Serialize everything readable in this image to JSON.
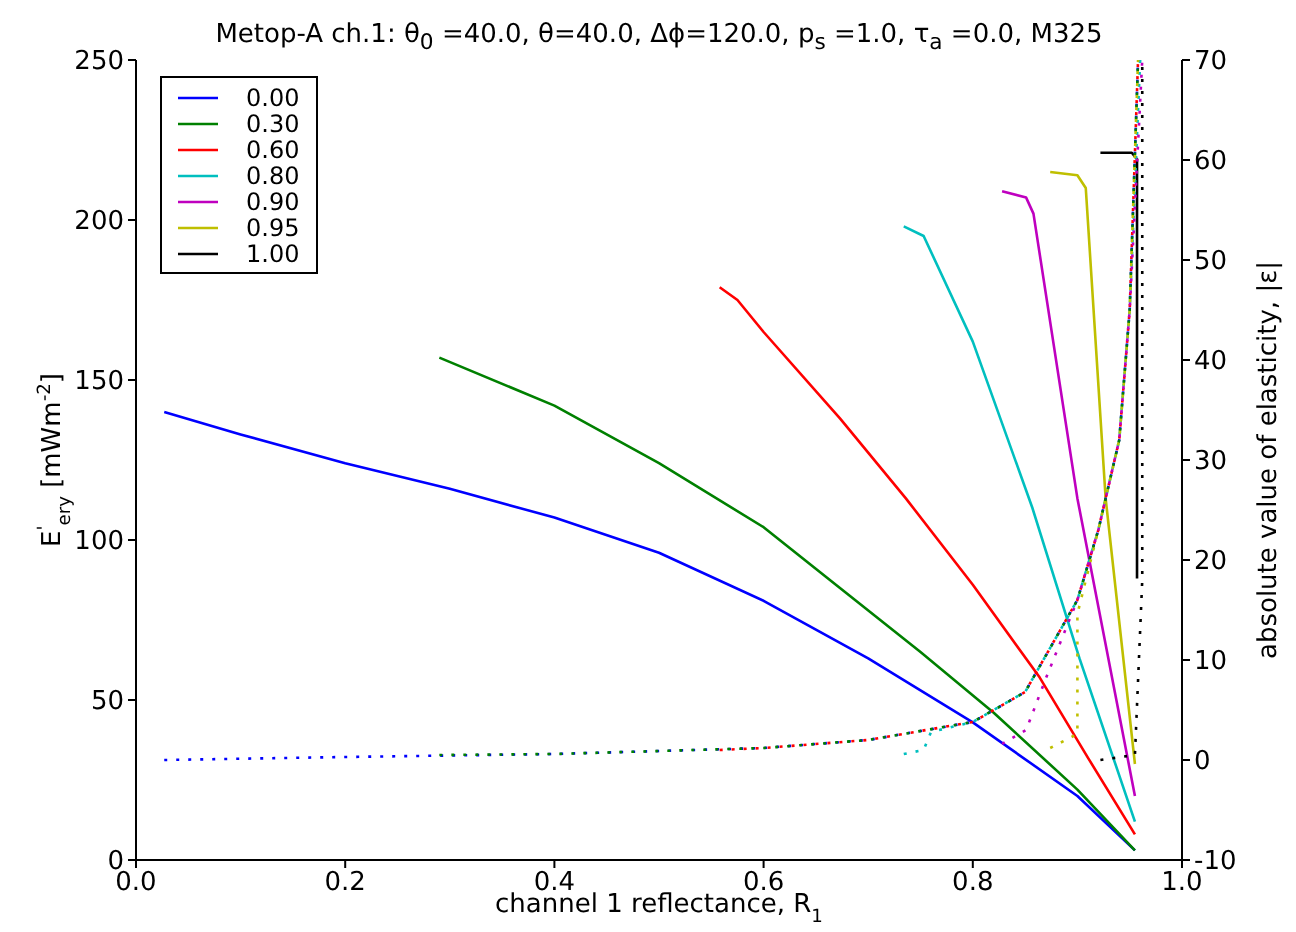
{
  "chart_data": {
    "type": "line",
    "title": "Metop-A ch.1: θ$_{0}$ =40.0, θ=40.0, Δϕ=120.0, p$_{s}$ =1.0, τ$_{a}$ =0.0, M325",
    "xlabel": "channel 1 reflectance, R$_{1}$",
    "ylabel": "E$^{'}$$_{ery}$ [mWm$^{-2}$]",
    "y2label": "absolute value of elasticity, |ε|",
    "xlim": [
      0,
      1
    ],
    "xticks": [
      {
        "value": 0,
        "label": "0.0"
      },
      {
        "value": 0.2,
        "label": "0.2"
      },
      {
        "value": 0.4,
        "label": "0.4"
      },
      {
        "value": 0.6,
        "label": "0.6"
      },
      {
        "value": 0.8,
        "label": "0.8"
      },
      {
        "value": 1,
        "label": "1.0"
      }
    ],
    "ylim": [
      0,
      250
    ],
    "yticks": [
      0,
      50,
      100,
      150,
      200,
      250
    ],
    "y2lim": [
      -10,
      70
    ],
    "y2ticks": [
      -10,
      0,
      10,
      20,
      30,
      40,
      50,
      60,
      70
    ],
    "grid": false,
    "legend": "top left",
    "marker": "none",
    "line_style": "solid",
    "series": [
      {
        "name": "0.00",
        "color": "#0000ff",
        "x": [
          0.027,
          0.1,
          0.2,
          0.3,
          0.4,
          0.5,
          0.6,
          0.7,
          0.8,
          0.9,
          0.955
        ],
        "values": [
          140,
          133,
          124,
          116,
          107,
          96,
          81,
          63,
          43,
          20,
          3
        ]
      },
      {
        "name": "0.30",
        "color": "#008000",
        "x": [
          0.29,
          0.4,
          0.5,
          0.6,
          0.673,
          0.75,
          0.82,
          0.9,
          0.955
        ],
        "values": [
          157,
          142,
          124,
          104,
          85,
          65,
          46,
          22,
          3
        ]
      },
      {
        "name": "0.60",
        "color": "#ff0000",
        "x": [
          0.558,
          0.575,
          0.6,
          0.673,
          0.736,
          0.8,
          0.864,
          0.91,
          0.955
        ],
        "values": [
          179,
          175,
          165,
          138,
          113,
          86,
          57,
          32,
          8
        ]
      },
      {
        "name": "0.80",
        "color": "#00bfbf",
        "x": [
          0.734,
          0.753,
          0.8,
          0.857,
          0.902,
          0.955
        ],
        "values": [
          198,
          195,
          162,
          110,
          63,
          12
        ]
      },
      {
        "name": "0.90",
        "color": "#bf00bf",
        "x": [
          0.828,
          0.851,
          0.858,
          0.9,
          0.955
        ],
        "values": [
          209,
          207,
          202,
          113,
          20
        ]
      },
      {
        "name": "0.95",
        "color": "#bfbf00",
        "x": [
          0.874,
          0.9,
          0.908,
          0.927,
          0.955
        ],
        "values": [
          215,
          214,
          210,
          113,
          30
        ]
      },
      {
        "name": "1.00",
        "color": "#000000",
        "x": [
          0.922,
          0.952,
          0.957,
          0.957
        ],
        "values": [
          221,
          221,
          219,
          88
        ]
      },
      {
        "color": "#0000ff",
        "axis": "y2",
        "line_style": "dotted",
        "x": [
          0.027,
          0.2,
          0.4,
          0.6,
          0.7,
          0.8,
          0.85,
          0.9,
          0.92,
          0.94,
          0.95,
          0.958
        ],
        "values": [
          0,
          0.3,
          0.6,
          1.2,
          2,
          3.8,
          6.8,
          16,
          23,
          32,
          45,
          70
        ]
      },
      {
        "color": "#008000",
        "axis": "y2",
        "line_style": "dotted",
        "x": [
          0.29,
          0.4,
          0.6,
          0.7,
          0.8,
          0.85,
          0.9,
          0.92,
          0.94,
          0.95,
          0.958
        ],
        "values": [
          0.5,
          0.6,
          1.2,
          2,
          3.8,
          6.8,
          16,
          23,
          32,
          45,
          70
        ]
      },
      {
        "color": "#ff0000",
        "axis": "y2",
        "line_style": "dotted",
        "x": [
          0.558,
          0.6,
          0.7,
          0.8,
          0.85,
          0.9,
          0.92,
          0.94,
          0.95,
          0.958
        ],
        "values": [
          1,
          1.2,
          2,
          3.8,
          6.8,
          16,
          23,
          32,
          45,
          70
        ]
      },
      {
        "color": "#00bfbf",
        "axis": "y2",
        "line_style": "dotted",
        "x": [
          0.734,
          0.753,
          0.76,
          0.8,
          0.85,
          0.9,
          0.92,
          0.94,
          0.95,
          0.96
        ],
        "values": [
          0.6,
          1,
          2.8,
          3.8,
          6.8,
          16,
          23,
          32,
          45,
          70
        ]
      },
      {
        "color": "#bf00bf",
        "axis": "y2",
        "line_style": "dotted",
        "x": [
          0.828,
          0.851,
          0.87,
          0.9,
          0.92,
          0.94,
          0.95,
          0.962
        ],
        "values": [
          1.6,
          3,
          8.2,
          16,
          23,
          32,
          45,
          70
        ]
      },
      {
        "color": "#bfbf00",
        "axis": "y2",
        "line_style": "dotted",
        "x": [
          0.874,
          0.9,
          0.9,
          0.92,
          0.94,
          0.95,
          0.958
        ],
        "values": [
          1.2,
          2.6,
          14.6,
          23,
          32,
          45,
          70
        ]
      },
      {
        "color": "#000000",
        "axis": "y2",
        "line_style": "dotted",
        "x": [
          0.922,
          0.955,
          0.962,
          0.962
        ],
        "values": [
          0,
          0.5,
          18,
          70
        ]
      }
    ]
  }
}
